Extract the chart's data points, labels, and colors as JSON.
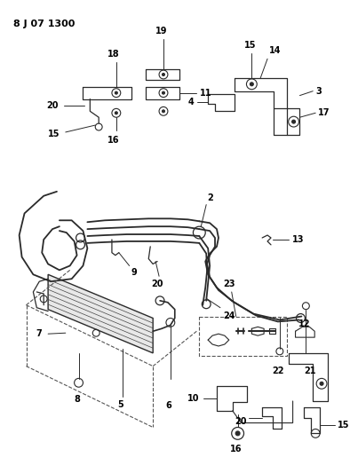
{
  "title": "8 J 07 1300",
  "background_color": "#ffffff",
  "line_color": "#2a2a2a",
  "text_color": "#000000",
  "fig_width": 3.94,
  "fig_height": 5.33,
  "dpi": 100
}
